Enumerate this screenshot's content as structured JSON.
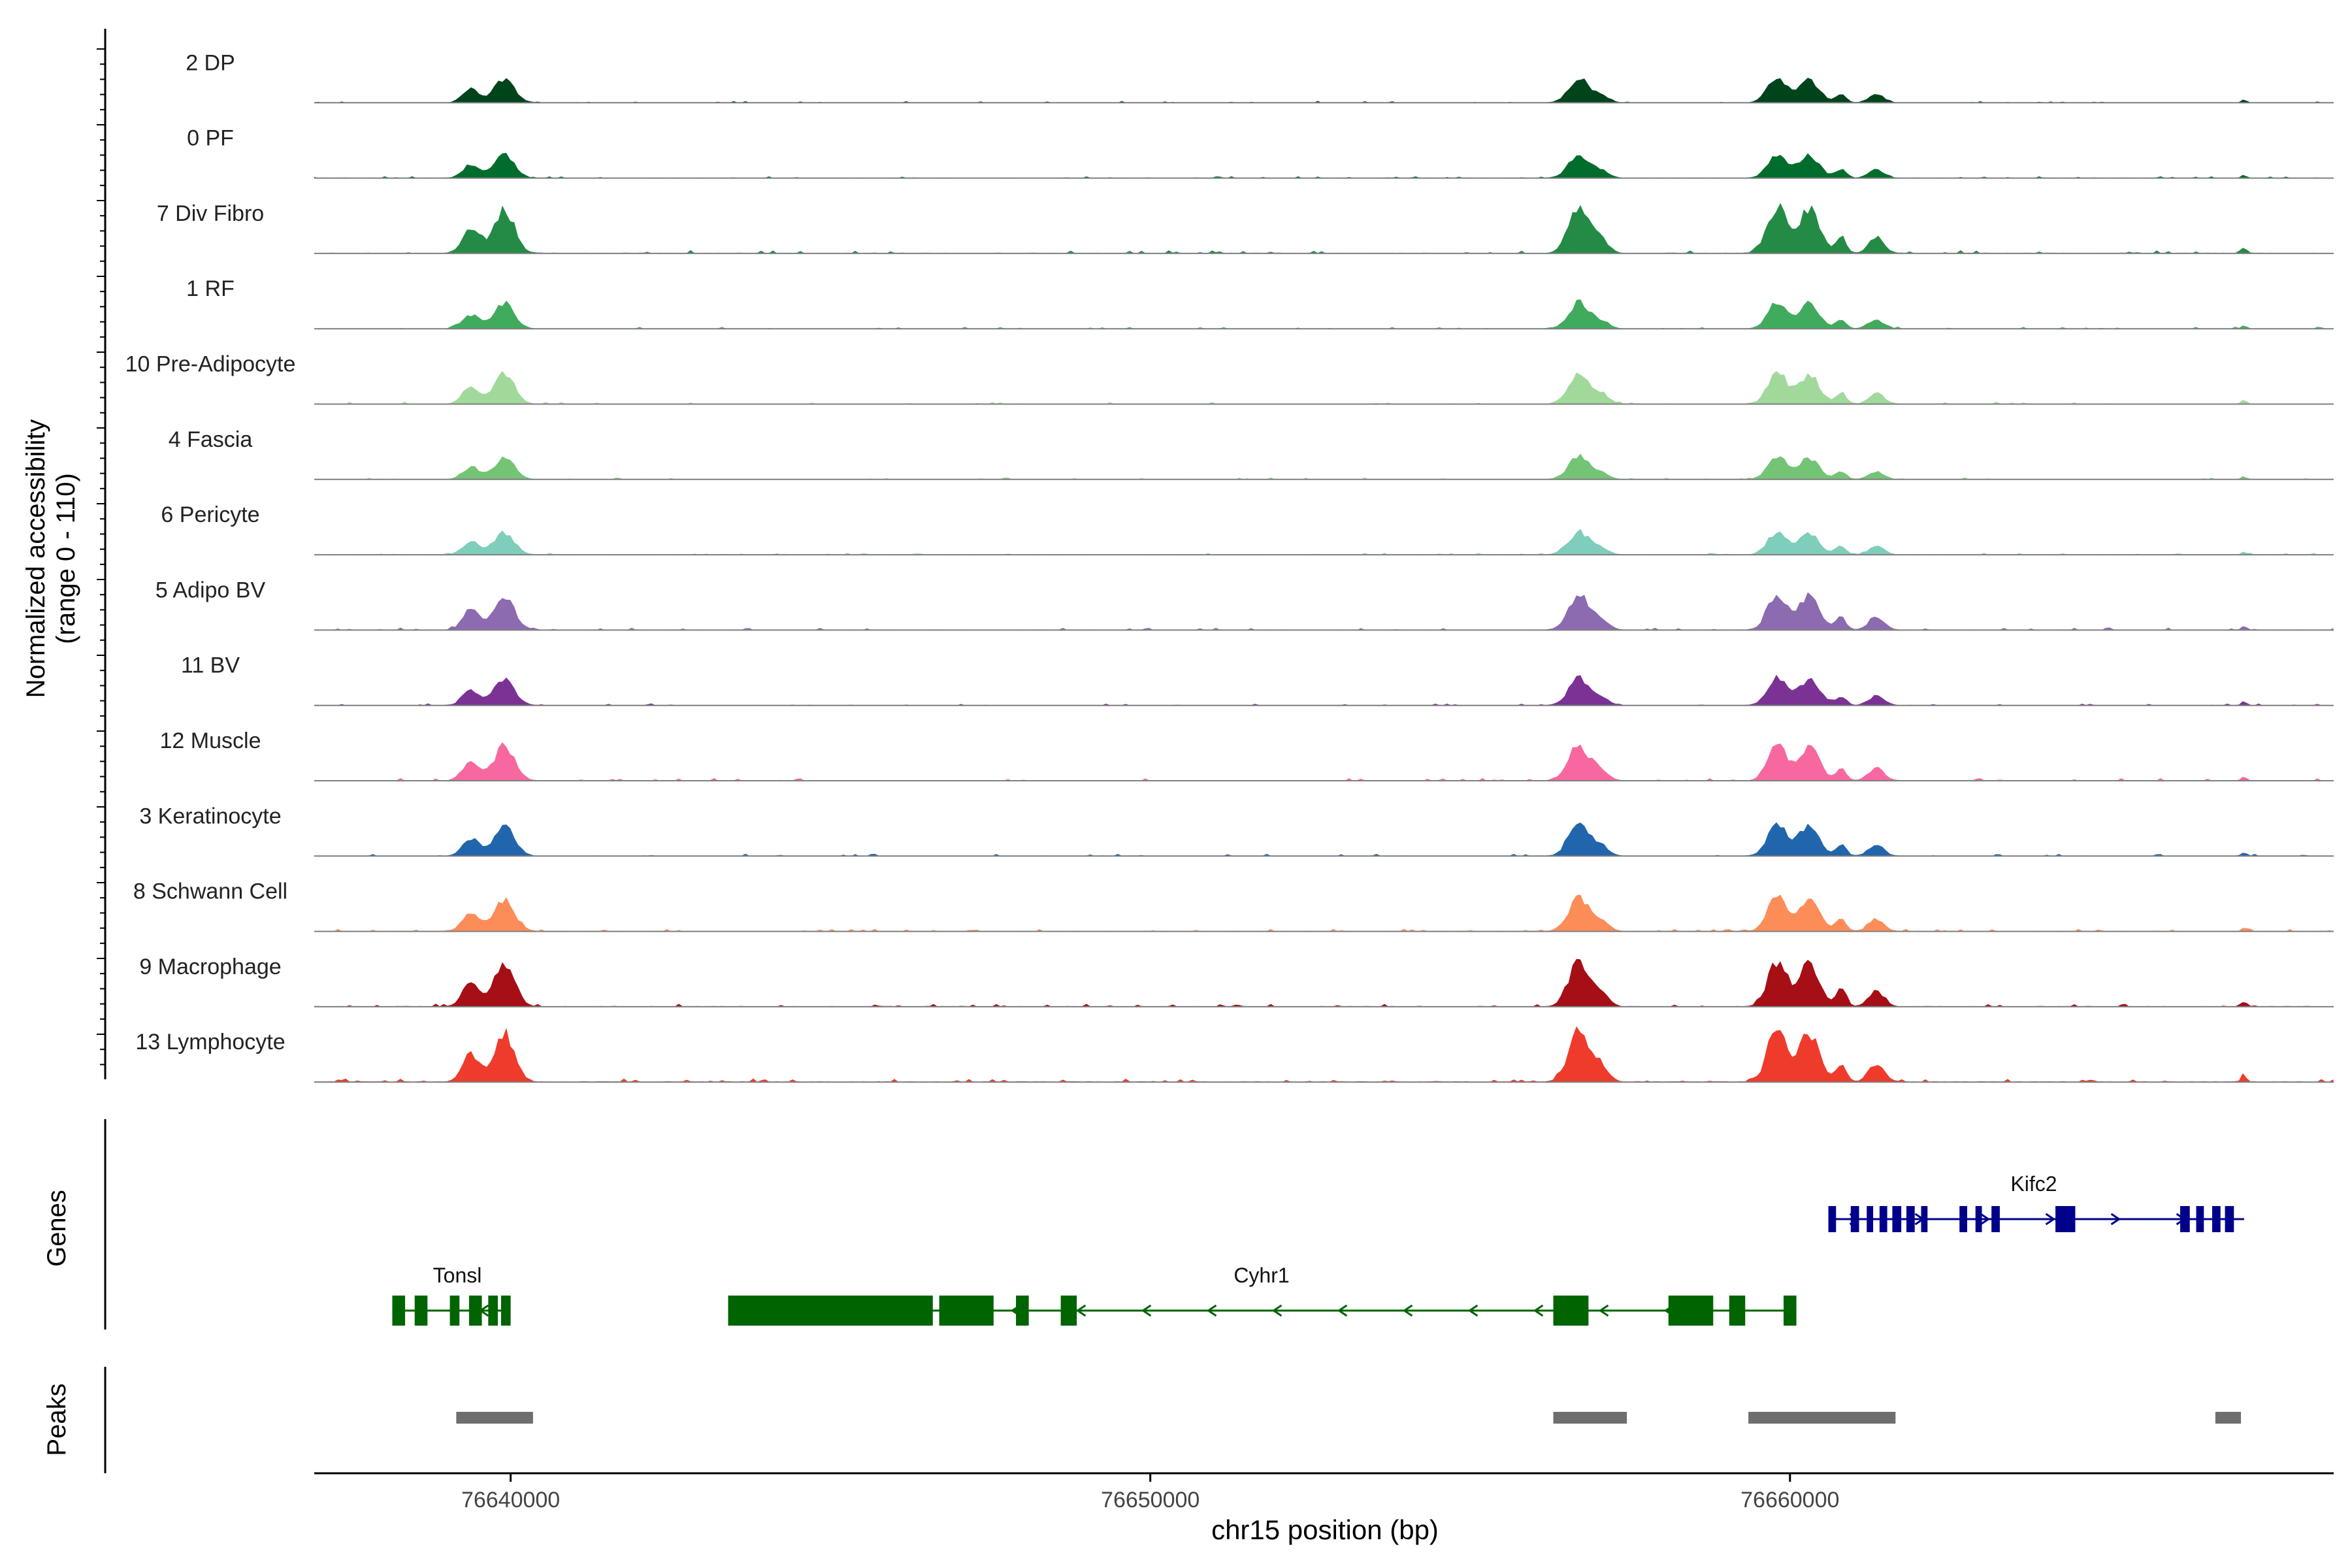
{
  "chart_data": {
    "type": "area",
    "y_axis_label_line1": "Normalized accessibility",
    "y_axis_label_line2": "(range 0 - 110)",
    "ylim": [
      0,
      110
    ],
    "x_axis_label": "chr15 position (bp)",
    "xlim": [
      76636930,
      76668500
    ],
    "x_ticks": [
      {
        "value": 76640000,
        "label": "76640000"
      },
      {
        "value": 76650000,
        "label": "76650000"
      },
      {
        "value": 76660000,
        "label": "76660000"
      }
    ],
    "peak_centers": [
      {
        "x": 76639380,
        "w": 130,
        "rel": 0.55
      },
      {
        "x": 76639900,
        "w": 160,
        "rel": 0.95
      },
      {
        "x": 76656700,
        "w": 160,
        "rel": 1.0
      },
      {
        "x": 76657050,
        "w": 120,
        "rel": 0.28
      },
      {
        "x": 76659800,
        "w": 150,
        "rel": 1.0
      },
      {
        "x": 76660300,
        "w": 160,
        "rel": 0.95
      },
      {
        "x": 76660800,
        "w": 80,
        "rel": 0.35
      },
      {
        "x": 76661350,
        "w": 120,
        "rel": 0.35
      },
      {
        "x": 76667100,
        "w": 40,
        "rel": 0.12
      }
    ],
    "series": [
      {
        "name": "2 DP",
        "color": "#00441b",
        "scale": 0.42
      },
      {
        "name": "0 PF",
        "color": "#006d2c",
        "scale": 0.42
      },
      {
        "name": "7 Div Fibro",
        "color": "#238b45",
        "scale": 0.8
      },
      {
        "name": "1 RF",
        "color": "#41ab5d",
        "scale": 0.45
      },
      {
        "name": "10 Pre-Adipocyte",
        "color": "#a1d99b",
        "scale": 0.55
      },
      {
        "name": "4 Fascia",
        "color": "#74c476",
        "scale": 0.4
      },
      {
        "name": "6 Pericyte",
        "color": "#7fcdbb",
        "scale": 0.4
      },
      {
        "name": "5 Adipo BV",
        "color": "#8c6bb1",
        "scale": 0.62
      },
      {
        "name": "11 BV",
        "color": "#7b3294",
        "scale": 0.48
      },
      {
        "name": "12 Muscle",
        "color": "#f768a1",
        "scale": 0.62
      },
      {
        "name": "3 Keratinocyte",
        "color": "#2166ac",
        "scale": 0.55
      },
      {
        "name": "8 Schwann Cell",
        "color": "#fc8d59",
        "scale": 0.6
      },
      {
        "name": "9 Macrophage",
        "color": "#a50f15",
        "scale": 0.78
      },
      {
        "name": "13 Lymphocyte",
        "color": "#ef3b2c",
        "scale": 0.88
      }
    ],
    "genes_panel_label": "Genes",
    "genes": [
      {
        "name": "Kifc2",
        "strand": "+",
        "start": 76660600,
        "end": 76667100,
        "color": "#00008b",
        "exons": [
          [
            76660600,
            76660720
          ],
          [
            76660950,
            76661080
          ],
          [
            76661200,
            76661300
          ],
          [
            76661400,
            76661520
          ],
          [
            76661600,
            76661740
          ],
          [
            76661820,
            76661950
          ],
          [
            76662050,
            76662150
          ],
          [
            76662650,
            76662770
          ],
          [
            76662900,
            76663000
          ],
          [
            76663150,
            76663280
          ],
          [
            76664150,
            76664460
          ],
          [
            76666100,
            76666250
          ],
          [
            76666350,
            76666470
          ],
          [
            76666600,
            76666730
          ],
          [
            76666800,
            76666940
          ]
        ]
      },
      {
        "name": "Tonsl",
        "strand": "-",
        "start": 76638150,
        "end": 76640000,
        "color": "#006400",
        "exons": [
          [
            76638150,
            76638350
          ],
          [
            76638500,
            76638700
          ],
          [
            76639050,
            76639200
          ],
          [
            76639350,
            76639550
          ],
          [
            76639650,
            76639800
          ],
          [
            76639850,
            76640000
          ]
        ]
      },
      {
        "name": "Cyhr1",
        "strand": "-",
        "start": 76643400,
        "end": 76660100,
        "color": "#006400",
        "exons": [
          [
            76643400,
            76646600
          ],
          [
            76646700,
            76647550
          ],
          [
            76647900,
            76648100
          ],
          [
            76648600,
            76648850
          ],
          [
            76656300,
            76656850
          ],
          [
            76658100,
            76658800
          ],
          [
            76659050,
            76659300
          ],
          [
            76659900,
            76660100
          ]
        ]
      }
    ],
    "peaks_panel_label": "Peaks",
    "peaks": [
      [
        76639150,
        76640350
      ],
      [
        76656300,
        76657450
      ],
      [
        76659350,
        76661650
      ],
      [
        76666650,
        76667050
      ]
    ],
    "peaks_color": "#6e6e6e"
  }
}
